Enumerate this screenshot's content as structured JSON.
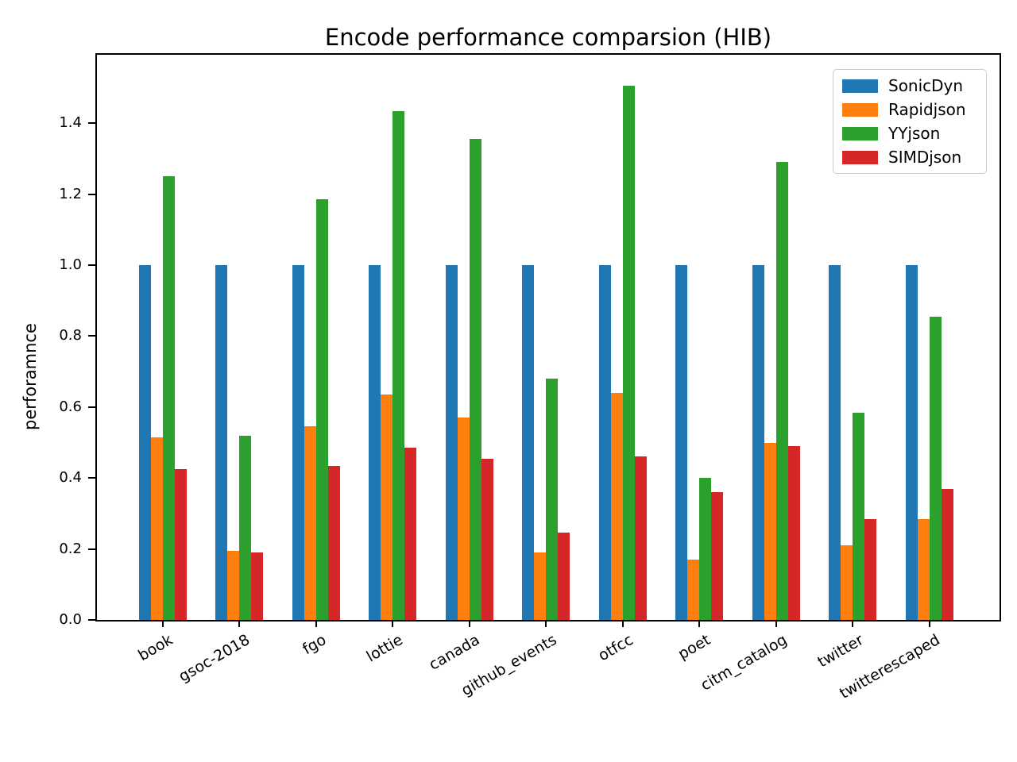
{
  "figure": {
    "title": "Encode performance comparsion (HIB)",
    "ylabel": "perforamnce"
  },
  "chart_data": {
    "type": "bar",
    "title": "Encode performance comparsion (HIB)",
    "xlabel": "",
    "ylabel": "perforamnce",
    "categories": [
      "book",
      "gsoc-2018",
      "fgo",
      "lottie",
      "canada",
      "github_events",
      "otfcc",
      "poet",
      "citm_catalog",
      "twitter",
      "twitterescaped"
    ],
    "series": [
      {
        "name": "SonicDyn",
        "color": "#1f77b4",
        "values": [
          1.0,
          1.0,
          1.0,
          1.0,
          1.0,
          1.0,
          1.0,
          1.0,
          1.0,
          1.0,
          1.0
        ]
      },
      {
        "name": "Rapidjson",
        "color": "#ff7f0e",
        "values": [
          0.515,
          0.195,
          0.545,
          0.635,
          0.57,
          0.19,
          0.64,
          0.17,
          0.5,
          0.21,
          0.285
        ]
      },
      {
        "name": "YYjson",
        "color": "#2ca02c",
        "values": [
          1.25,
          0.52,
          1.185,
          1.435,
          1.355,
          0.68,
          1.505,
          0.4,
          1.29,
          0.585,
          0.855
        ]
      },
      {
        "name": "SIMDjson",
        "color": "#d62728",
        "values": [
          0.425,
          0.19,
          0.435,
          0.485,
          0.455,
          0.245,
          0.46,
          0.36,
          0.49,
          0.285,
          0.37
        ]
      }
    ],
    "yticks": [
      0.0,
      0.2,
      0.4,
      0.6,
      0.8,
      1.0,
      1.2,
      1.4
    ],
    "ytick_labels": [
      "0.0",
      "0.2",
      "0.4",
      "0.6",
      "0.8",
      "1.0",
      "1.2",
      "1.4"
    ],
    "ylim": [
      0,
      1.593
    ],
    "grid": false,
    "legend_position": "upper right",
    "legend_entries": [
      "SonicDyn",
      "Rapidjson",
      "YYjson",
      "SIMDjson"
    ]
  }
}
